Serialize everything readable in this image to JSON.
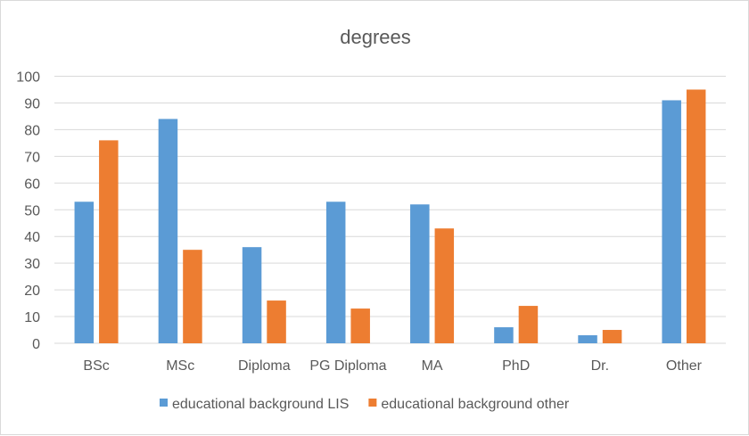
{
  "chart_data": {
    "type": "bar",
    "title": "degrees",
    "xlabel": "",
    "ylabel": "",
    "categories": [
      "BSc",
      "MSc",
      "Diploma",
      "PG Diploma",
      "MA",
      "PhD",
      "Dr.",
      "Other"
    ],
    "series": [
      {
        "name": "educational background LIS",
        "color": "#5b9bd5",
        "values": [
          53,
          84,
          36,
          53,
          52,
          6,
          3,
          91
        ]
      },
      {
        "name": "educational background other",
        "color": "#ed7d31",
        "values": [
          76,
          35,
          16,
          13,
          43,
          14,
          5,
          95
        ]
      }
    ],
    "ylim": [
      0,
      100
    ],
    "yticks": [
      0,
      10,
      20,
      30,
      40,
      50,
      60,
      70,
      80,
      90,
      100
    ],
    "grid": true,
    "legend": "bottom"
  }
}
